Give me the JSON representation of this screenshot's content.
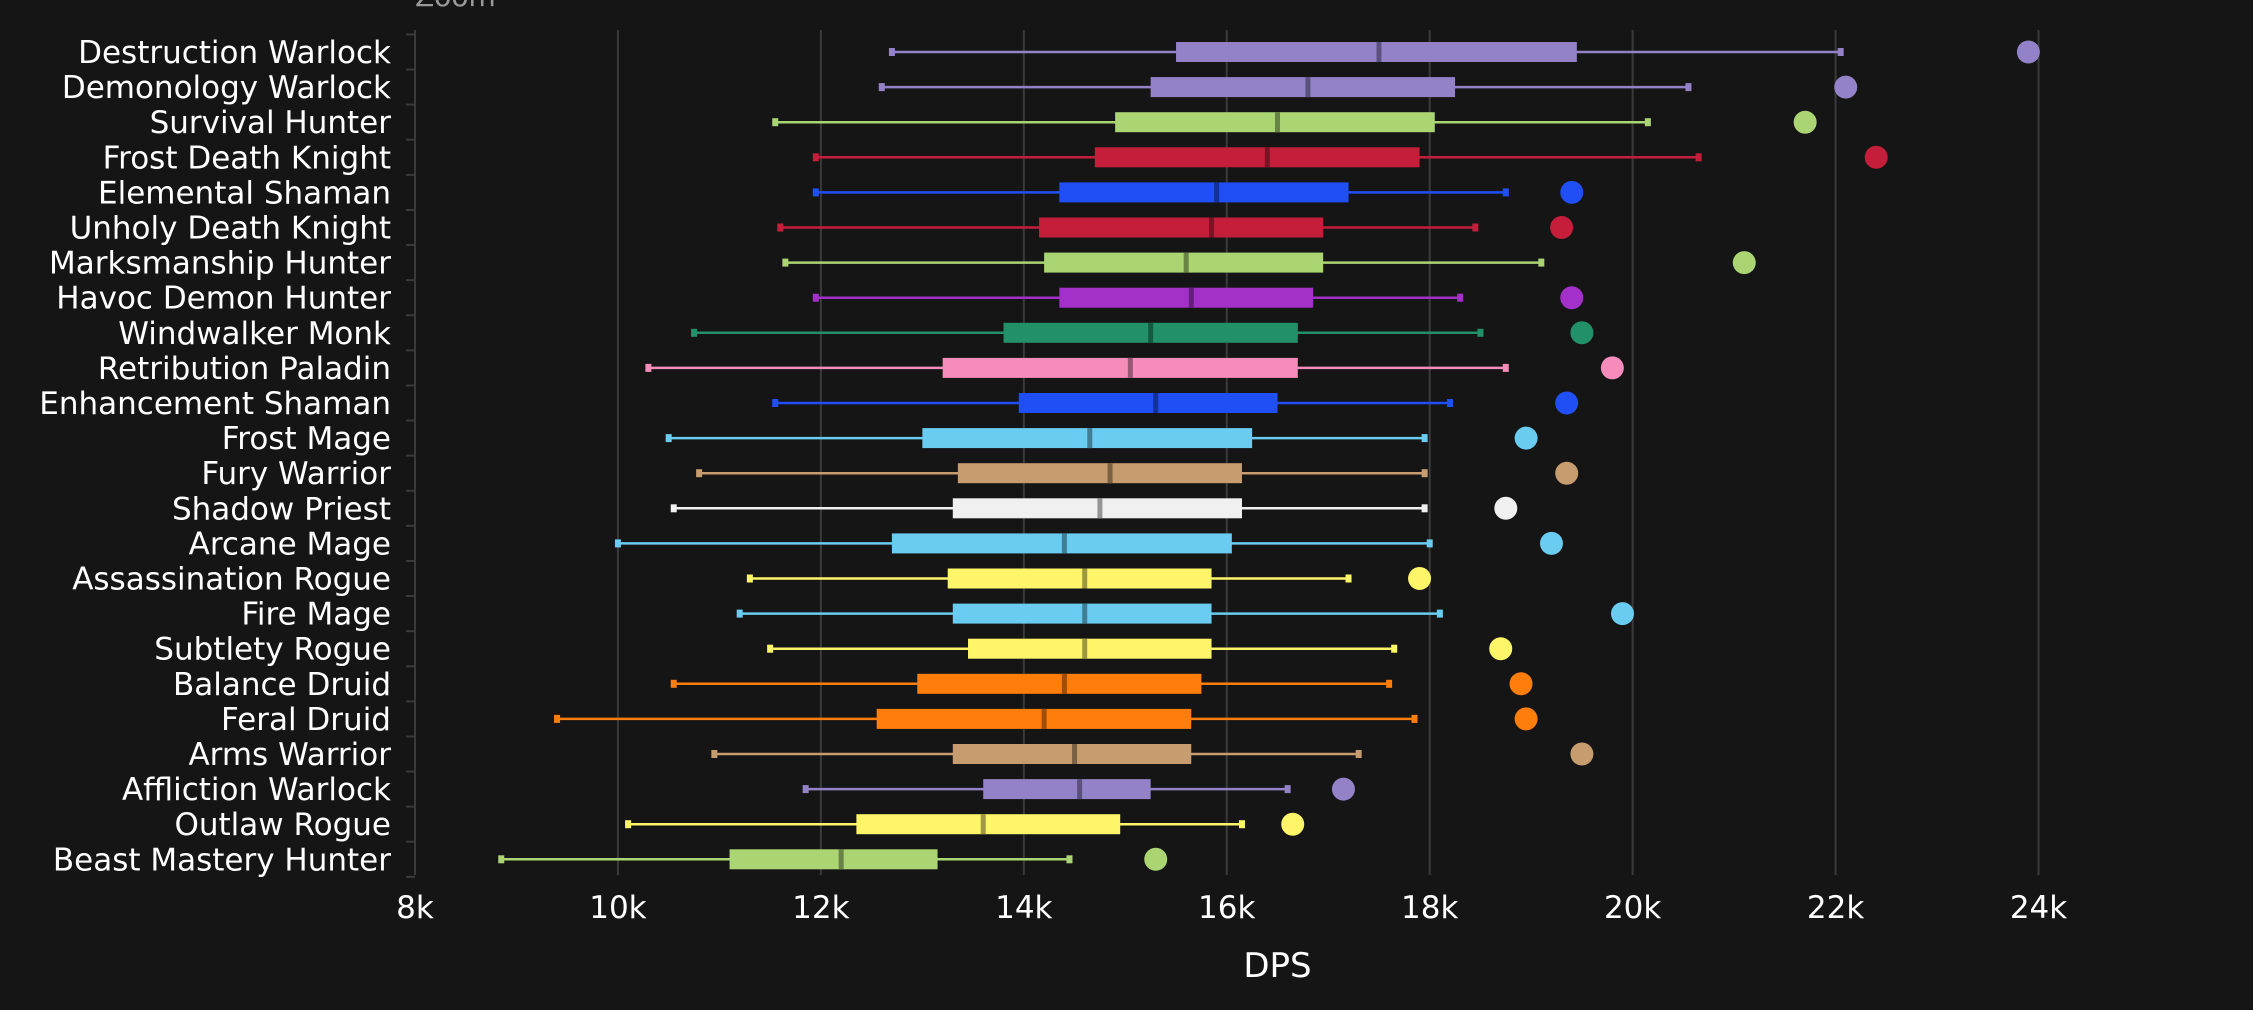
{
  "zoom_label": "Zoom",
  "chart_data": {
    "type": "box",
    "xlabel": "DPS",
    "xlim": [
      8000,
      25000
    ],
    "xticks": [
      8000,
      10000,
      12000,
      14000,
      16000,
      18000,
      20000,
      22000,
      24000
    ],
    "xtick_labels": [
      "8k",
      "10k",
      "12k",
      "14k",
      "16k",
      "18k",
      "20k",
      "22k",
      "24k"
    ],
    "grid": true,
    "series": [
      {
        "name": "Destruction Warlock",
        "color": "#9482c9",
        "min": 12700,
        "q1": 15500,
        "median": 17500,
        "q3": 19450,
        "max": 22050,
        "outlier": 23900
      },
      {
        "name": "Demonology Warlock",
        "color": "#9482c9",
        "min": 12600,
        "q1": 15250,
        "median": 16800,
        "q3": 18250,
        "max": 20550,
        "outlier": 22100
      },
      {
        "name": "Survival Hunter",
        "color": "#abd473",
        "min": 11550,
        "q1": 14900,
        "median": 16500,
        "q3": 18050,
        "max": 20150,
        "outlier": 21700
      },
      {
        "name": "Frost Death Knight",
        "color": "#c41e3a",
        "min": 11950,
        "q1": 14700,
        "median": 16400,
        "q3": 17900,
        "max": 20650,
        "outlier": 22400
      },
      {
        "name": "Elemental Shaman",
        "color": "#1f4ff5",
        "min": 11950,
        "q1": 14350,
        "median": 15900,
        "q3": 17200,
        "max": 18750,
        "outlier": 19400
      },
      {
        "name": "Unholy Death Knight",
        "color": "#c41e3a",
        "min": 11600,
        "q1": 14150,
        "median": 15850,
        "q3": 16950,
        "max": 18450,
        "outlier": 19300
      },
      {
        "name": "Marksmanship Hunter",
        "color": "#abd473",
        "min": 11650,
        "q1": 14200,
        "median": 15600,
        "q3": 16950,
        "max": 19100,
        "outlier": 21100
      },
      {
        "name": "Havoc Demon Hunter",
        "color": "#a330c9",
        "min": 11950,
        "q1": 14350,
        "median": 15650,
        "q3": 16850,
        "max": 18300,
        "outlier": 19400
      },
      {
        "name": "Windwalker Monk",
        "color": "#22916a",
        "min": 10750,
        "q1": 13800,
        "median": 15250,
        "q3": 16700,
        "max": 18500,
        "outlier": 19500
      },
      {
        "name": "Retribution Paladin",
        "color": "#f58cba",
        "min": 10300,
        "q1": 13200,
        "median": 15050,
        "q3": 16700,
        "max": 18750,
        "outlier": 19800
      },
      {
        "name": "Enhancement Shaman",
        "color": "#1f4ff5",
        "min": 11550,
        "q1": 13950,
        "median": 15300,
        "q3": 16500,
        "max": 18200,
        "outlier": 19350
      },
      {
        "name": "Frost Mage",
        "color": "#69ccf0",
        "min": 10500,
        "q1": 13000,
        "median": 14650,
        "q3": 16250,
        "max": 17950,
        "outlier": 18950
      },
      {
        "name": "Fury Warrior",
        "color": "#c79c6e",
        "min": 10800,
        "q1": 13350,
        "median": 14850,
        "q3": 16150,
        "max": 17950,
        "outlier": 19350
      },
      {
        "name": "Shadow Priest",
        "color": "#f0f0f0",
        "min": 10550,
        "q1": 13300,
        "median": 14750,
        "q3": 16150,
        "max": 17950,
        "outlier": 18750
      },
      {
        "name": "Arcane Mage",
        "color": "#69ccf0",
        "min": 10000,
        "q1": 12700,
        "median": 14400,
        "q3": 16050,
        "max": 18000,
        "outlier": 19200
      },
      {
        "name": "Assassination Rogue",
        "color": "#fff569",
        "min": 11300,
        "q1": 13250,
        "median": 14600,
        "q3": 15850,
        "max": 17200,
        "outlier": 17900
      },
      {
        "name": "Fire Mage",
        "color": "#69ccf0",
        "min": 11200,
        "q1": 13300,
        "median": 14600,
        "q3": 15850,
        "max": 18100,
        "outlier": 19900
      },
      {
        "name": "Subtlety Rogue",
        "color": "#fff569",
        "min": 11500,
        "q1": 13450,
        "median": 14600,
        "q3": 15850,
        "max": 17650,
        "outlier": 18700
      },
      {
        "name": "Balance Druid",
        "color": "#ff7d0a",
        "min": 10550,
        "q1": 12950,
        "median": 14400,
        "q3": 15750,
        "max": 17600,
        "outlier": 18900
      },
      {
        "name": "Feral Druid",
        "color": "#ff7d0a",
        "min": 9400,
        "q1": 12550,
        "median": 14200,
        "q3": 15650,
        "max": 17850,
        "outlier": 18950
      },
      {
        "name": "Arms Warrior",
        "color": "#c79c6e",
        "min": 10950,
        "q1": 13300,
        "median": 14500,
        "q3": 15650,
        "max": 17300,
        "outlier": 19500
      },
      {
        "name": "Affliction Warlock",
        "color": "#9482c9",
        "min": 11850,
        "q1": 13600,
        "median": 14550,
        "q3": 15250,
        "max": 16600,
        "outlier": 17150
      },
      {
        "name": "Outlaw Rogue",
        "color": "#fff569",
        "min": 10100,
        "q1": 12350,
        "median": 13600,
        "q3": 14950,
        "max": 16150,
        "outlier": 16650
      },
      {
        "name": "Beast Mastery Hunter",
        "color": "#abd473",
        "min": 8850,
        "q1": 11100,
        "median": 12200,
        "q3": 13150,
        "max": 14450,
        "outlier": 15300
      }
    ]
  }
}
